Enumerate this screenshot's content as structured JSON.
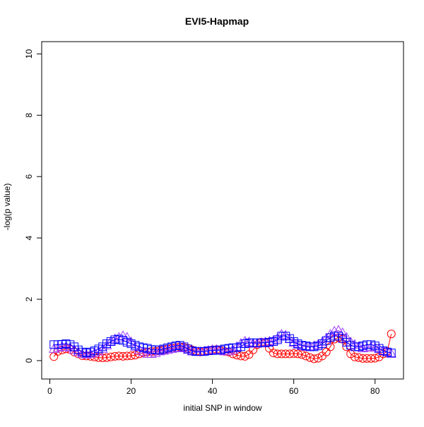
{
  "chart_data": {
    "type": "line",
    "title": "EVI5-Hapmap",
    "xlabel": "initial SNP in window",
    "ylabel": "-log(p value)",
    "xlim": [
      -2,
      87
    ],
    "ylim": [
      -0.6,
      10.4
    ],
    "x_ticks": [
      0,
      20,
      40,
      60,
      80
    ],
    "y_ticks": [
      0,
      2,
      4,
      6,
      8,
      10
    ],
    "grid": false,
    "series": [
      {
        "marker": "circle",
        "color": "#ff0000",
        "x": [
          1,
          2,
          3,
          4,
          5,
          6,
          7,
          8,
          9,
          10,
          11,
          12,
          13,
          14,
          15,
          16,
          17,
          18,
          19,
          20,
          21,
          22,
          23,
          24,
          25,
          26,
          27,
          28,
          29,
          30,
          31,
          32,
          33,
          34,
          35,
          36,
          37,
          38,
          39,
          40,
          41,
          42,
          43,
          44,
          45,
          46,
          47,
          48,
          49,
          50,
          51,
          52,
          53,
          54,
          55,
          56,
          57,
          58,
          59,
          60,
          61,
          62,
          63,
          64,
          65,
          66,
          67,
          68,
          69,
          70,
          71,
          72,
          73,
          74,
          75,
          76,
          77,
          78,
          79,
          80,
          81,
          82,
          83,
          84
        ],
        "values": [
          0.13,
          0.3,
          0.35,
          0.38,
          0.36,
          0.28,
          0.22,
          0.16,
          0.15,
          0.14,
          0.12,
          0.1,
          0.09,
          0.1,
          0.12,
          0.14,
          0.15,
          0.14,
          0.15,
          0.16,
          0.18,
          0.22,
          0.26,
          0.28,
          0.3,
          0.3,
          0.32,
          0.35,
          0.38,
          0.4,
          0.42,
          0.45,
          0.43,
          0.4,
          0.35,
          0.3,
          0.28,
          0.3,
          0.33,
          0.35,
          0.36,
          0.33,
          0.3,
          0.28,
          0.22,
          0.18,
          0.15,
          0.14,
          0.2,
          0.35,
          0.52,
          0.6,
          0.58,
          0.4,
          0.25,
          0.22,
          0.22,
          0.22,
          0.22,
          0.23,
          0.22,
          0.2,
          0.15,
          0.1,
          0.06,
          0.08,
          0.15,
          0.28,
          0.45,
          0.7,
          0.75,
          0.7,
          0.45,
          0.22,
          0.12,
          0.1,
          0.07,
          0.07,
          0.07,
          0.08,
          0.12,
          0.22,
          0.3,
          0.87
        ]
      },
      {
        "marker": "triangle",
        "color": "#a040ff",
        "x": [
          1,
          2,
          3,
          4,
          5,
          6,
          7,
          8,
          9,
          10,
          11,
          12,
          13,
          14,
          15,
          16,
          17,
          18,
          19,
          20,
          21,
          22,
          23,
          24,
          25,
          26,
          27,
          28,
          29,
          30,
          31,
          32,
          33,
          34,
          35,
          36,
          37,
          38,
          39,
          40,
          41,
          42,
          43,
          44,
          45,
          46,
          47,
          48,
          49,
          50,
          51,
          52,
          53,
          54,
          55,
          56,
          57,
          58,
          59,
          60,
          61,
          62,
          63,
          64,
          65,
          66,
          67,
          68,
          69,
          70,
          71,
          72,
          73,
          74,
          75,
          76,
          77,
          78,
          79,
          80,
          81,
          82,
          83,
          84
        ],
        "values": [
          0.38,
          0.42,
          0.45,
          0.45,
          0.42,
          0.35,
          0.28,
          0.22,
          0.2,
          0.22,
          0.25,
          0.3,
          0.38,
          0.5,
          0.62,
          0.7,
          0.75,
          0.8,
          0.75,
          0.6,
          0.45,
          0.35,
          0.28,
          0.22,
          0.22,
          0.25,
          0.3,
          0.32,
          0.35,
          0.38,
          0.4,
          0.42,
          0.4,
          0.35,
          0.3,
          0.28,
          0.28,
          0.3,
          0.32,
          0.35,
          0.35,
          0.32,
          0.3,
          0.3,
          0.35,
          0.45,
          0.55,
          0.62,
          0.6,
          0.55,
          0.55,
          0.58,
          0.6,
          0.62,
          0.65,
          0.72,
          0.85,
          0.82,
          0.7,
          0.58,
          0.52,
          0.48,
          0.45,
          0.45,
          0.48,
          0.52,
          0.6,
          0.72,
          0.85,
          0.95,
          0.98,
          0.9,
          0.75,
          0.6,
          0.52,
          0.45,
          0.4,
          0.42,
          0.45,
          0.42,
          0.38,
          0.32,
          0.28,
          0.22
        ]
      },
      {
        "marker": "square",
        "color": "#0000ff",
        "x": [
          1,
          2,
          3,
          4,
          5,
          6,
          7,
          8,
          9,
          10,
          11,
          12,
          13,
          14,
          15,
          16,
          17,
          18,
          19,
          20,
          21,
          22,
          23,
          24,
          25,
          26,
          27,
          28,
          29,
          30,
          31,
          32,
          33,
          34,
          35,
          36,
          37,
          38,
          39,
          40,
          41,
          42,
          43,
          44,
          45,
          46,
          47,
          48,
          49,
          50,
          51,
          52,
          53,
          54,
          55,
          56,
          57,
          58,
          59,
          60,
          61,
          62,
          63,
          64,
          65,
          66,
          67,
          68,
          69,
          70,
          71,
          72,
          73,
          74,
          75,
          76,
          77,
          78,
          79,
          80,
          81,
          82,
          83,
          84
        ],
        "values": [
          0.52,
          0.52,
          0.53,
          0.55,
          0.52,
          0.45,
          0.35,
          0.28,
          0.25,
          0.28,
          0.32,
          0.38,
          0.45,
          0.55,
          0.62,
          0.68,
          0.7,
          0.66,
          0.6,
          0.55,
          0.5,
          0.45,
          0.42,
          0.4,
          0.36,
          0.35,
          0.35,
          0.38,
          0.42,
          0.45,
          0.48,
          0.5,
          0.45,
          0.38,
          0.32,
          0.3,
          0.3,
          0.3,
          0.32,
          0.33,
          0.34,
          0.35,
          0.38,
          0.4,
          0.42,
          0.42,
          0.45,
          0.55,
          0.58,
          0.58,
          0.58,
          0.58,
          0.58,
          0.6,
          0.62,
          0.68,
          0.8,
          0.8,
          0.72,
          0.62,
          0.55,
          0.5,
          0.48,
          0.45,
          0.45,
          0.48,
          0.55,
          0.65,
          0.75,
          0.8,
          0.8,
          0.72,
          0.6,
          0.5,
          0.45,
          0.45,
          0.48,
          0.52,
          0.52,
          0.48,
          0.4,
          0.32,
          0.28,
          0.25
        ]
      }
    ]
  }
}
